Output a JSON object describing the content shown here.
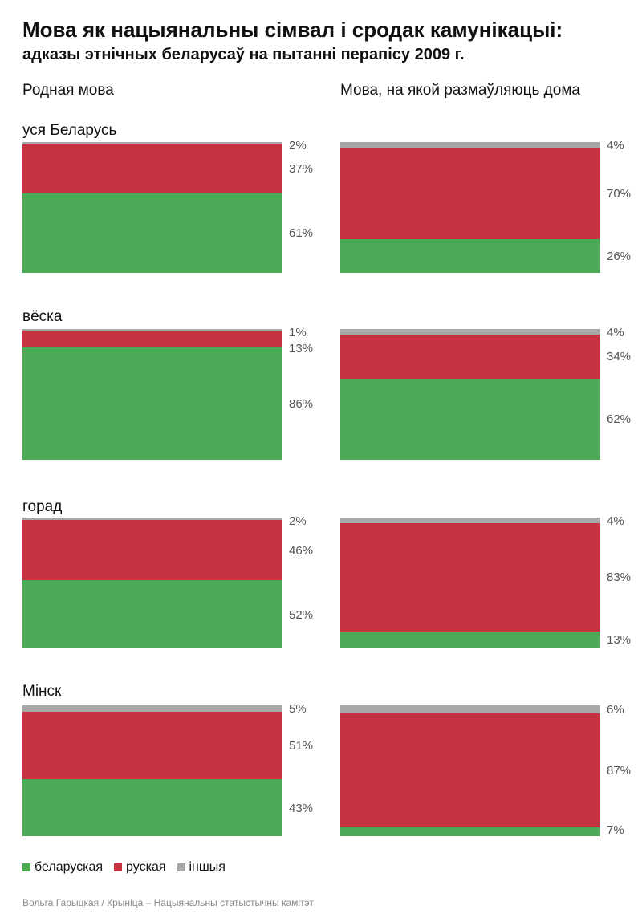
{
  "chart_data": {
    "type": "bar",
    "stacked": true,
    "normalized": true,
    "title": "Мова як нацыянальны сімвал і сродак камунікацыі:",
    "subtitle": "адказы этнічных беларусаў на пытанні перапісу 2009 г.",
    "columns": [
      "Родная мова",
      "Мова, на якой размаўляюць дома"
    ],
    "legend": [
      {
        "key": "bel",
        "label": "беларуская"
      },
      {
        "key": "rus",
        "label": "руская"
      },
      {
        "key": "other",
        "label": "іншыя"
      }
    ],
    "colors": {
      "bel": "#4caa57",
      "rus": "#c73240",
      "other": "#a8a8a8"
    },
    "groups": [
      {
        "label": "уся Беларусь",
        "native": {
          "bel": 61,
          "rus": 37,
          "other": 2
        },
        "home": {
          "bel": 26,
          "rus": 70,
          "other": 4
        }
      },
      {
        "label": "вёска",
        "native": {
          "bel": 86,
          "rus": 13,
          "other": 1
        },
        "home": {
          "bel": 62,
          "rus": 34,
          "other": 4
        }
      },
      {
        "label": "горад",
        "native": {
          "bel": 52,
          "rus": 46,
          "other": 2
        },
        "home": {
          "bel": 13,
          "rus": 83,
          "other": 4
        }
      },
      {
        "label": "Мінск",
        "native": {
          "bel": 43,
          "rus": 51,
          "other": 5
        },
        "home": {
          "bel": 7,
          "rus": 87,
          "other": 6
        }
      }
    ],
    "unit": "%"
  },
  "source": "Вольга Гарыцкая / Крыніца – Нацыянальны статыстычны камітэт"
}
